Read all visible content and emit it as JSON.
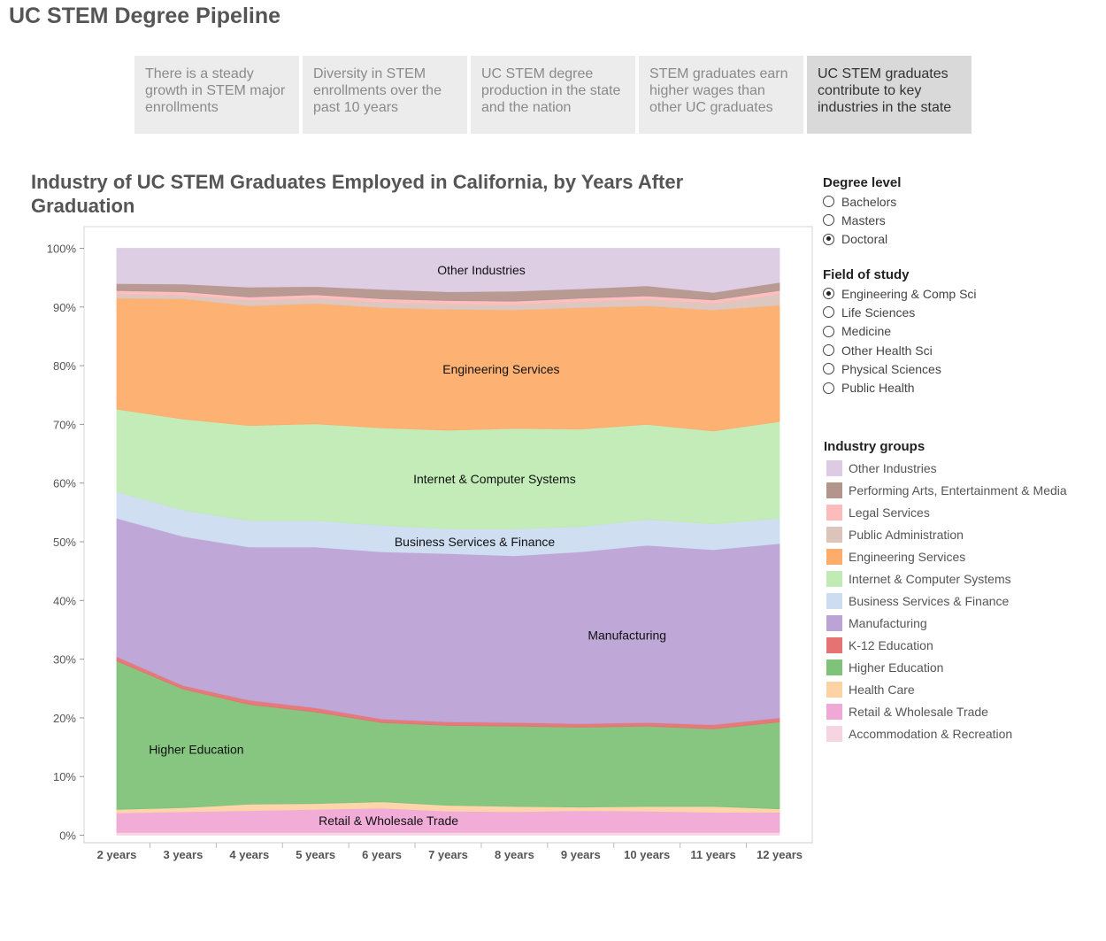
{
  "page_title": "UC STEM Degree Pipeline",
  "tabs": [
    {
      "label": "There is a steady growth in STEM major enrollments"
    },
    {
      "label": "Diversity in STEM enrollments over the past 10 years"
    },
    {
      "label": "UC STEM degree production in the state and the nation"
    },
    {
      "label": "STEM graduates earn higher wages than other UC graduates"
    },
    {
      "label": "UC STEM graduates contribute to key industries in the state"
    }
  ],
  "active_tab": 4,
  "filters": {
    "degree": {
      "title": "Degree level",
      "options": [
        "Bachelors",
        "Masters",
        "Doctoral"
      ],
      "selected": 2
    },
    "field": {
      "title": "Field of study",
      "options": [
        "Engineering & Comp Sci",
        "Life Sciences",
        "Medicine",
        "Other Health Sci",
        "Physical Sciences",
        "Public Health"
      ],
      "selected": 0
    }
  },
  "legend": {
    "title": "Industry groups"
  },
  "chart_data": {
    "type": "area",
    "stacked": true,
    "title": "Industry of UC STEM Graduates Employed in California, by Years After Graduation",
    "categories": [
      "2 years",
      "3 years",
      "4 years",
      "5 years",
      "6 years",
      "7 years",
      "8 years",
      "9 years",
      "10 years",
      "11 years",
      "12 years"
    ],
    "y_ticks": [
      "0%",
      "10%",
      "20%",
      "30%",
      "40%",
      "50%",
      "60%",
      "70%",
      "80%",
      "90%",
      "100%"
    ],
    "ylim": [
      0,
      100
    ],
    "series": [
      {
        "name": "Accommodation & Recreation",
        "color": "#f7d4e1",
        "values": [
          0.5,
          0.5,
          0.5,
          0.5,
          0.5,
          0.5,
          0.5,
          0.5,
          0.5,
          0.5,
          0.5
        ]
      },
      {
        "name": "Retail & Wholesale Trade",
        "color": "#f0a8d6",
        "values": [
          3.3,
          3.5,
          3.7,
          3.9,
          4.1,
          3.6,
          3.5,
          3.7,
          3.6,
          3.4,
          3.4
        ]
      },
      {
        "name": "Health Care",
        "color": "#fdd3a6",
        "values": [
          0.6,
          0.7,
          1.1,
          1.0,
          1.1,
          1.0,
          0.9,
          0.6,
          0.8,
          1.0,
          0.6
        ]
      },
      {
        "name": "Higher Education",
        "color": "#7fc37a",
        "values": [
          25.3,
          20.2,
          17.0,
          15.6,
          13.5,
          13.6,
          13.7,
          13.6,
          13.7,
          13.2,
          14.8
        ]
      },
      {
        "name": "K-12 Education",
        "color": "#e57373",
        "values": [
          0.7,
          0.6,
          0.7,
          0.7,
          0.6,
          0.6,
          0.6,
          0.6,
          0.6,
          0.7,
          0.7
        ]
      },
      {
        "name": "Manufacturing",
        "color": "#bca3d5",
        "values": [
          23.6,
          25.4,
          26.1,
          27.4,
          28.5,
          28.7,
          28.4,
          29.3,
          30.2,
          29.8,
          29.7
        ]
      },
      {
        "name": "Business Services & Finance",
        "color": "#cddcf1",
        "values": [
          4.5,
          4.5,
          4.5,
          4.5,
          4.5,
          4.2,
          4.6,
          4.3,
          4.4,
          4.4,
          4.3
        ]
      },
      {
        "name": "Internet & Computer Systems",
        "color": "#c0ebb5",
        "values": [
          14.1,
          15.5,
          16.2,
          16.5,
          16.6,
          16.8,
          17.1,
          16.6,
          16.2,
          15.8,
          16.5
        ]
      },
      {
        "name": "Engineering Services",
        "color": "#fdad6b",
        "values": [
          18.9,
          20.5,
          20.4,
          20.5,
          20.5,
          20.6,
          20.2,
          20.7,
          20.2,
          20.6,
          19.8
        ]
      },
      {
        "name": "Public Administration",
        "color": "#dcc4bb",
        "values": [
          0.7,
          0.6,
          0.9,
          0.9,
          0.9,
          0.9,
          0.9,
          1.0,
          1.1,
          1.1,
          1.9
        ]
      },
      {
        "name": "Legal Services",
        "color": "#fdbcbc",
        "values": [
          0.6,
          0.6,
          0.6,
          0.6,
          0.6,
          0.6,
          0.6,
          0.6,
          0.6,
          0.6,
          0.6
        ]
      },
      {
        "name": "Performing Arts, Entertainment & Media",
        "color": "#b4958c",
        "values": [
          1.2,
          1.3,
          1.7,
          1.4,
          1.6,
          1.5,
          1.7,
          1.6,
          1.7,
          1.3,
          1.4
        ]
      },
      {
        "name": "Other Industries",
        "color": "#dccbe3",
        "values": [
          6.0,
          6.1,
          6.6,
          6.5,
          7.0,
          7.4,
          7.3,
          6.9,
          6.4,
          7.5,
          5.8
        ]
      }
    ],
    "area_labels": [
      "Other Industries",
      "Engineering Services",
      "Internet & Computer Systems",
      "Business Services & Finance",
      "Manufacturing",
      "Higher Education",
      "Retail & Wholesale Trade"
    ],
    "legend_order": [
      "Other Industries",
      "Performing Arts, Entertainment & Media",
      "Legal Services",
      "Public Administration",
      "Engineering Services",
      "Internet & Computer Systems",
      "Business Services & Finance",
      "Manufacturing",
      "K-12 Education",
      "Higher Education",
      "Health Care",
      "Retail & Wholesale Trade",
      "Accommodation & Recreation"
    ],
    "legend_placement": "right",
    "grid": false
  }
}
